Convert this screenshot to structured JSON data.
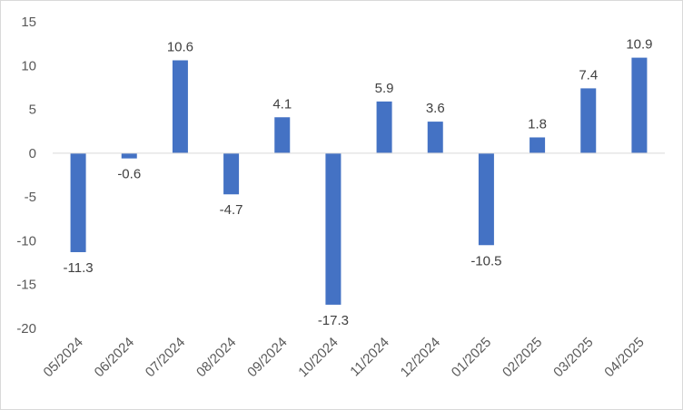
{
  "chart_data": {
    "type": "bar",
    "title": "",
    "xlabel": "",
    "ylabel": "",
    "ylim": [
      -20,
      15
    ],
    "yticks": [
      15,
      10,
      5,
      0,
      -5,
      -10,
      -15,
      -20
    ],
    "grid": false,
    "legend": "none",
    "bar_color": "#4472C4",
    "categories": [
      "05/2024",
      "06/2024",
      "07/2024",
      "08/2024",
      "09/2024",
      "10/2024",
      "11/2024",
      "12/2024",
      "01/2025",
      "02/2025",
      "03/2025",
      "04/2025"
    ],
    "values": [
      -11.3,
      -0.6,
      10.6,
      -4.7,
      4.1,
      -17.3,
      5.9,
      3.6,
      -10.5,
      1.8,
      7.4,
      10.9
    ],
    "data_labels": [
      "-11.3",
      "-0.6",
      "10.6",
      "-4.7",
      "4.1",
      "-17.3",
      "5.9",
      "3.6",
      "-10.5",
      "1.8",
      "7.4",
      "10.9"
    ]
  }
}
